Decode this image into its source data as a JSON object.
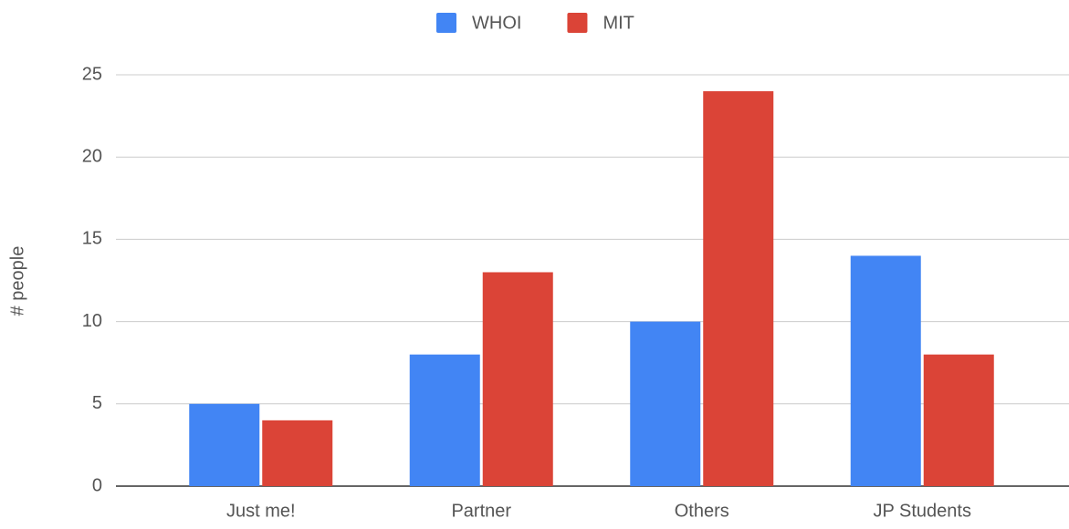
{
  "chart_data": {
    "type": "bar",
    "y_label": "# people",
    "categories": [
      "Just me!",
      "Partner",
      "Others",
      "JP Students"
    ],
    "series": [
      {
        "name": "WHOI",
        "color": "#4285f4",
        "values": [
          5,
          8,
          10,
          14
        ]
      },
      {
        "name": "MIT",
        "color": "#db4437",
        "values": [
          4,
          13,
          24,
          8
        ]
      }
    ],
    "ylim": [
      0,
      25
    ],
    "yticks": [
      0,
      5,
      10,
      15,
      20,
      25
    ],
    "grid": true,
    "legend": "top"
  }
}
